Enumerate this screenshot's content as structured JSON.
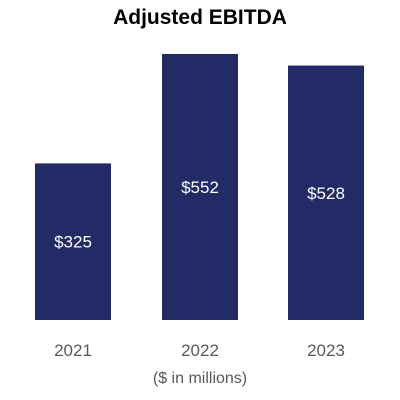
{
  "chart_data": {
    "type": "bar",
    "title": "Adjusted EBITDA",
    "categories": [
      "2021",
      "2022",
      "2023"
    ],
    "values": [
      325,
      552,
      528
    ],
    "data_labels": [
      "$325",
      "$552",
      "$528"
    ],
    "note": "($ in millions)",
    "bar_color": "#232B66",
    "label_color": "#ffffff",
    "tick_color": "#595959",
    "grid": false,
    "legend": "none"
  }
}
